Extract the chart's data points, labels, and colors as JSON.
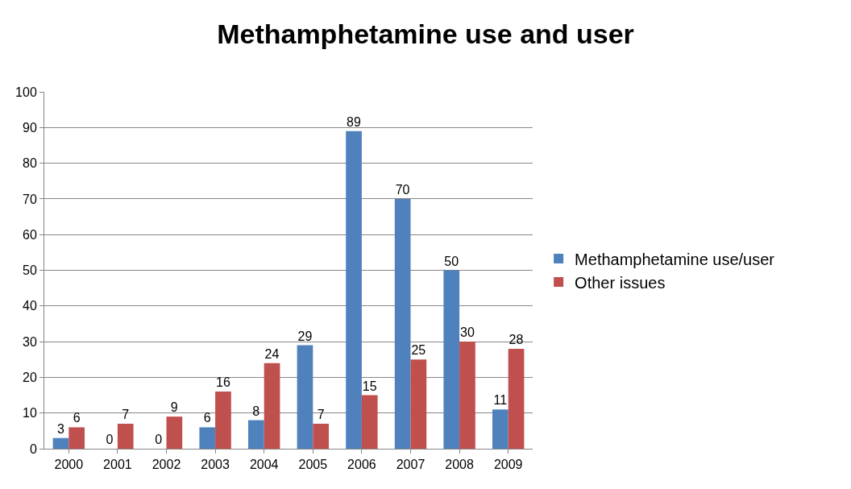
{
  "chart_data": {
    "type": "bar",
    "title": "Methamphetamine use and user",
    "categories": [
      "2000",
      "2001",
      "2002",
      "2003",
      "2004",
      "2005",
      "2006",
      "2007",
      "2008",
      "2009"
    ],
    "series": [
      {
        "name": "Methamphetamine use/user",
        "color": "#4f81bd",
        "values": [
          3,
          0,
          0,
          6,
          8,
          29,
          89,
          70,
          50,
          11
        ]
      },
      {
        "name": "Other issues",
        "color": "#c0504d",
        "values": [
          6,
          7,
          9,
          16,
          24,
          7,
          15,
          25,
          30,
          28
        ]
      }
    ],
    "ylim": [
      0,
      100
    ],
    "yticks": [
      0,
      10,
      20,
      30,
      40,
      50,
      60,
      70,
      80,
      90,
      100
    ],
    "grid": "y",
    "legend": "right",
    "data_labels": true
  }
}
